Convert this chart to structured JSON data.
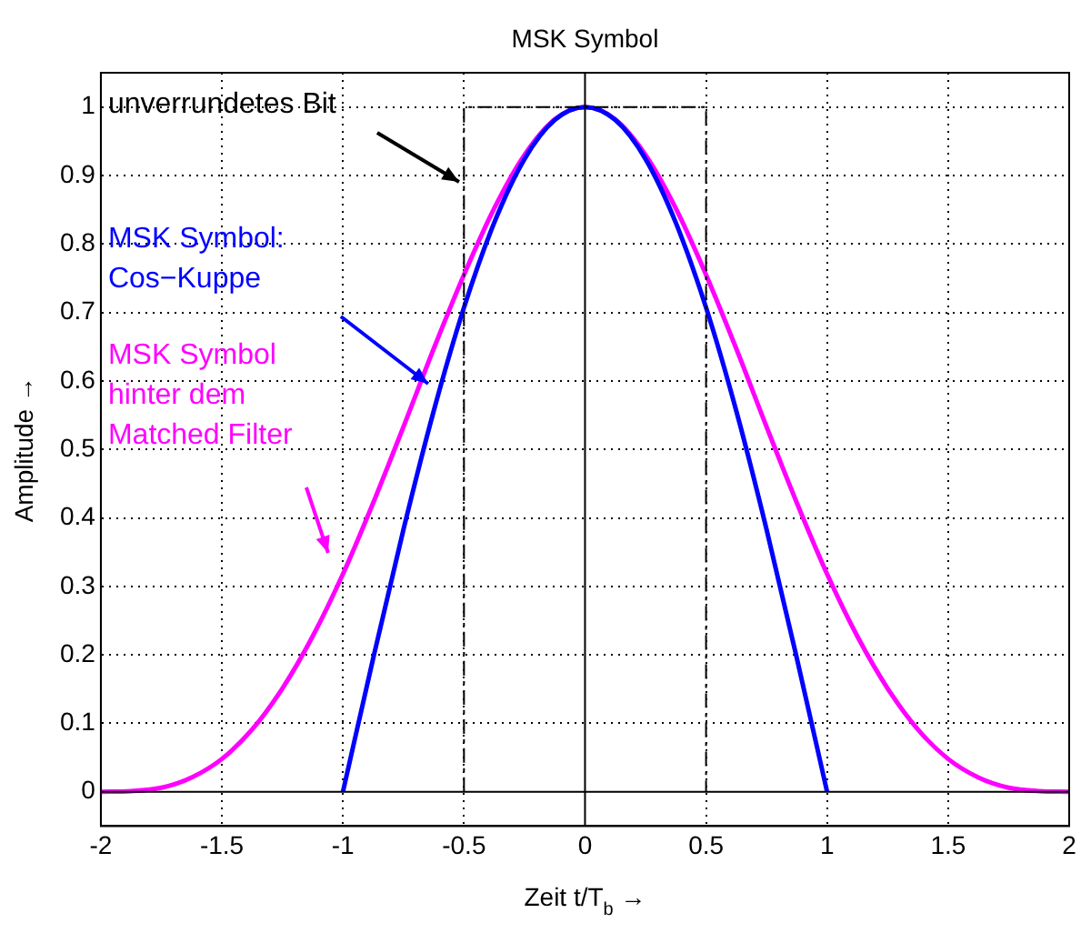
{
  "chart_data": {
    "type": "line",
    "title": "MSK Symbol",
    "xlabel": "Zeit t/T$_{b}$ →",
    "ylabel": "Amplitude →",
    "xlim": [
      -2,
      2
    ],
    "xticks": [
      -2,
      -1.5,
      -1,
      -0.5,
      0,
      0.5,
      1,
      1.5,
      2
    ],
    "ylim": [
      -0.05,
      1.05
    ],
    "yticks": [
      0,
      0.1,
      0.2,
      0.3,
      0.4,
      0.5,
      0.6,
      0.7,
      0.8,
      0.9,
      1
    ],
    "grid": true,
    "legend": false,
    "marker": "none",
    "series": [
      {
        "color": "#000000",
        "line_style": "solid",
        "x": [
          -2,
          2
        ],
        "values": [
          0,
          0
        ]
      },
      {
        "color": "#000000",
        "line_style": "solid",
        "x": [
          0,
          0
        ],
        "values": [
          -0.05,
          1.05
        ]
      },
      {
        "color": "#000000",
        "line_style": "dashed",
        "x": [
          -0.5,
          -0.5,
          0.5,
          0.5
        ],
        "values": [
          0,
          1,
          1,
          0
        ]
      },
      {
        "color": "#0000ff",
        "line_style": "solid",
        "x": [
          -1,
          -0.875,
          -0.75,
          -0.625,
          -0.5,
          -0.375,
          -0.25,
          -0.125,
          0,
          0.125,
          0.25,
          0.375,
          0.5,
          0.625,
          0.75,
          0.875,
          1
        ],
        "values": [
          0,
          0.195,
          0.383,
          0.556,
          0.707,
          0.831,
          0.924,
          0.981,
          1,
          0.981,
          0.924,
          0.831,
          0.707,
          0.556,
          0.383,
          0.195,
          0
        ]
      },
      {
        "color": "#ff00ff",
        "line_style": "solid",
        "x": [
          -2,
          -1.875,
          -1.75,
          -1.625,
          -1.5,
          -1.375,
          -1.25,
          -1.125,
          -1,
          -0.875,
          -0.75,
          -0.625,
          -0.5,
          -0.375,
          -0.25,
          -0.125,
          0,
          0.125,
          0.25,
          0.375,
          0.5,
          0.625,
          0.75,
          0.875,
          1,
          1.125,
          1.25,
          1.375,
          1.5,
          1.625,
          1.75,
          1.875,
          2
        ],
        "values": [
          0,
          0.001,
          0.006,
          0.021,
          0.048,
          0.091,
          0.151,
          0.227,
          0.318,
          0.422,
          0.533,
          0.647,
          0.755,
          0.852,
          0.93,
          0.982,
          1,
          0.982,
          0.93,
          0.852,
          0.755,
          0.647,
          0.533,
          0.422,
          0.318,
          0.227,
          0.151,
          0.091,
          0.048,
          0.021,
          0.006,
          0.001,
          0
        ]
      }
    ],
    "annotations": [
      "unverrundetes Bit",
      "MSK Symbol:\nCos−Kuppe",
      "MSK Symbol\nhinter dem\nMatched Filter"
    ]
  }
}
